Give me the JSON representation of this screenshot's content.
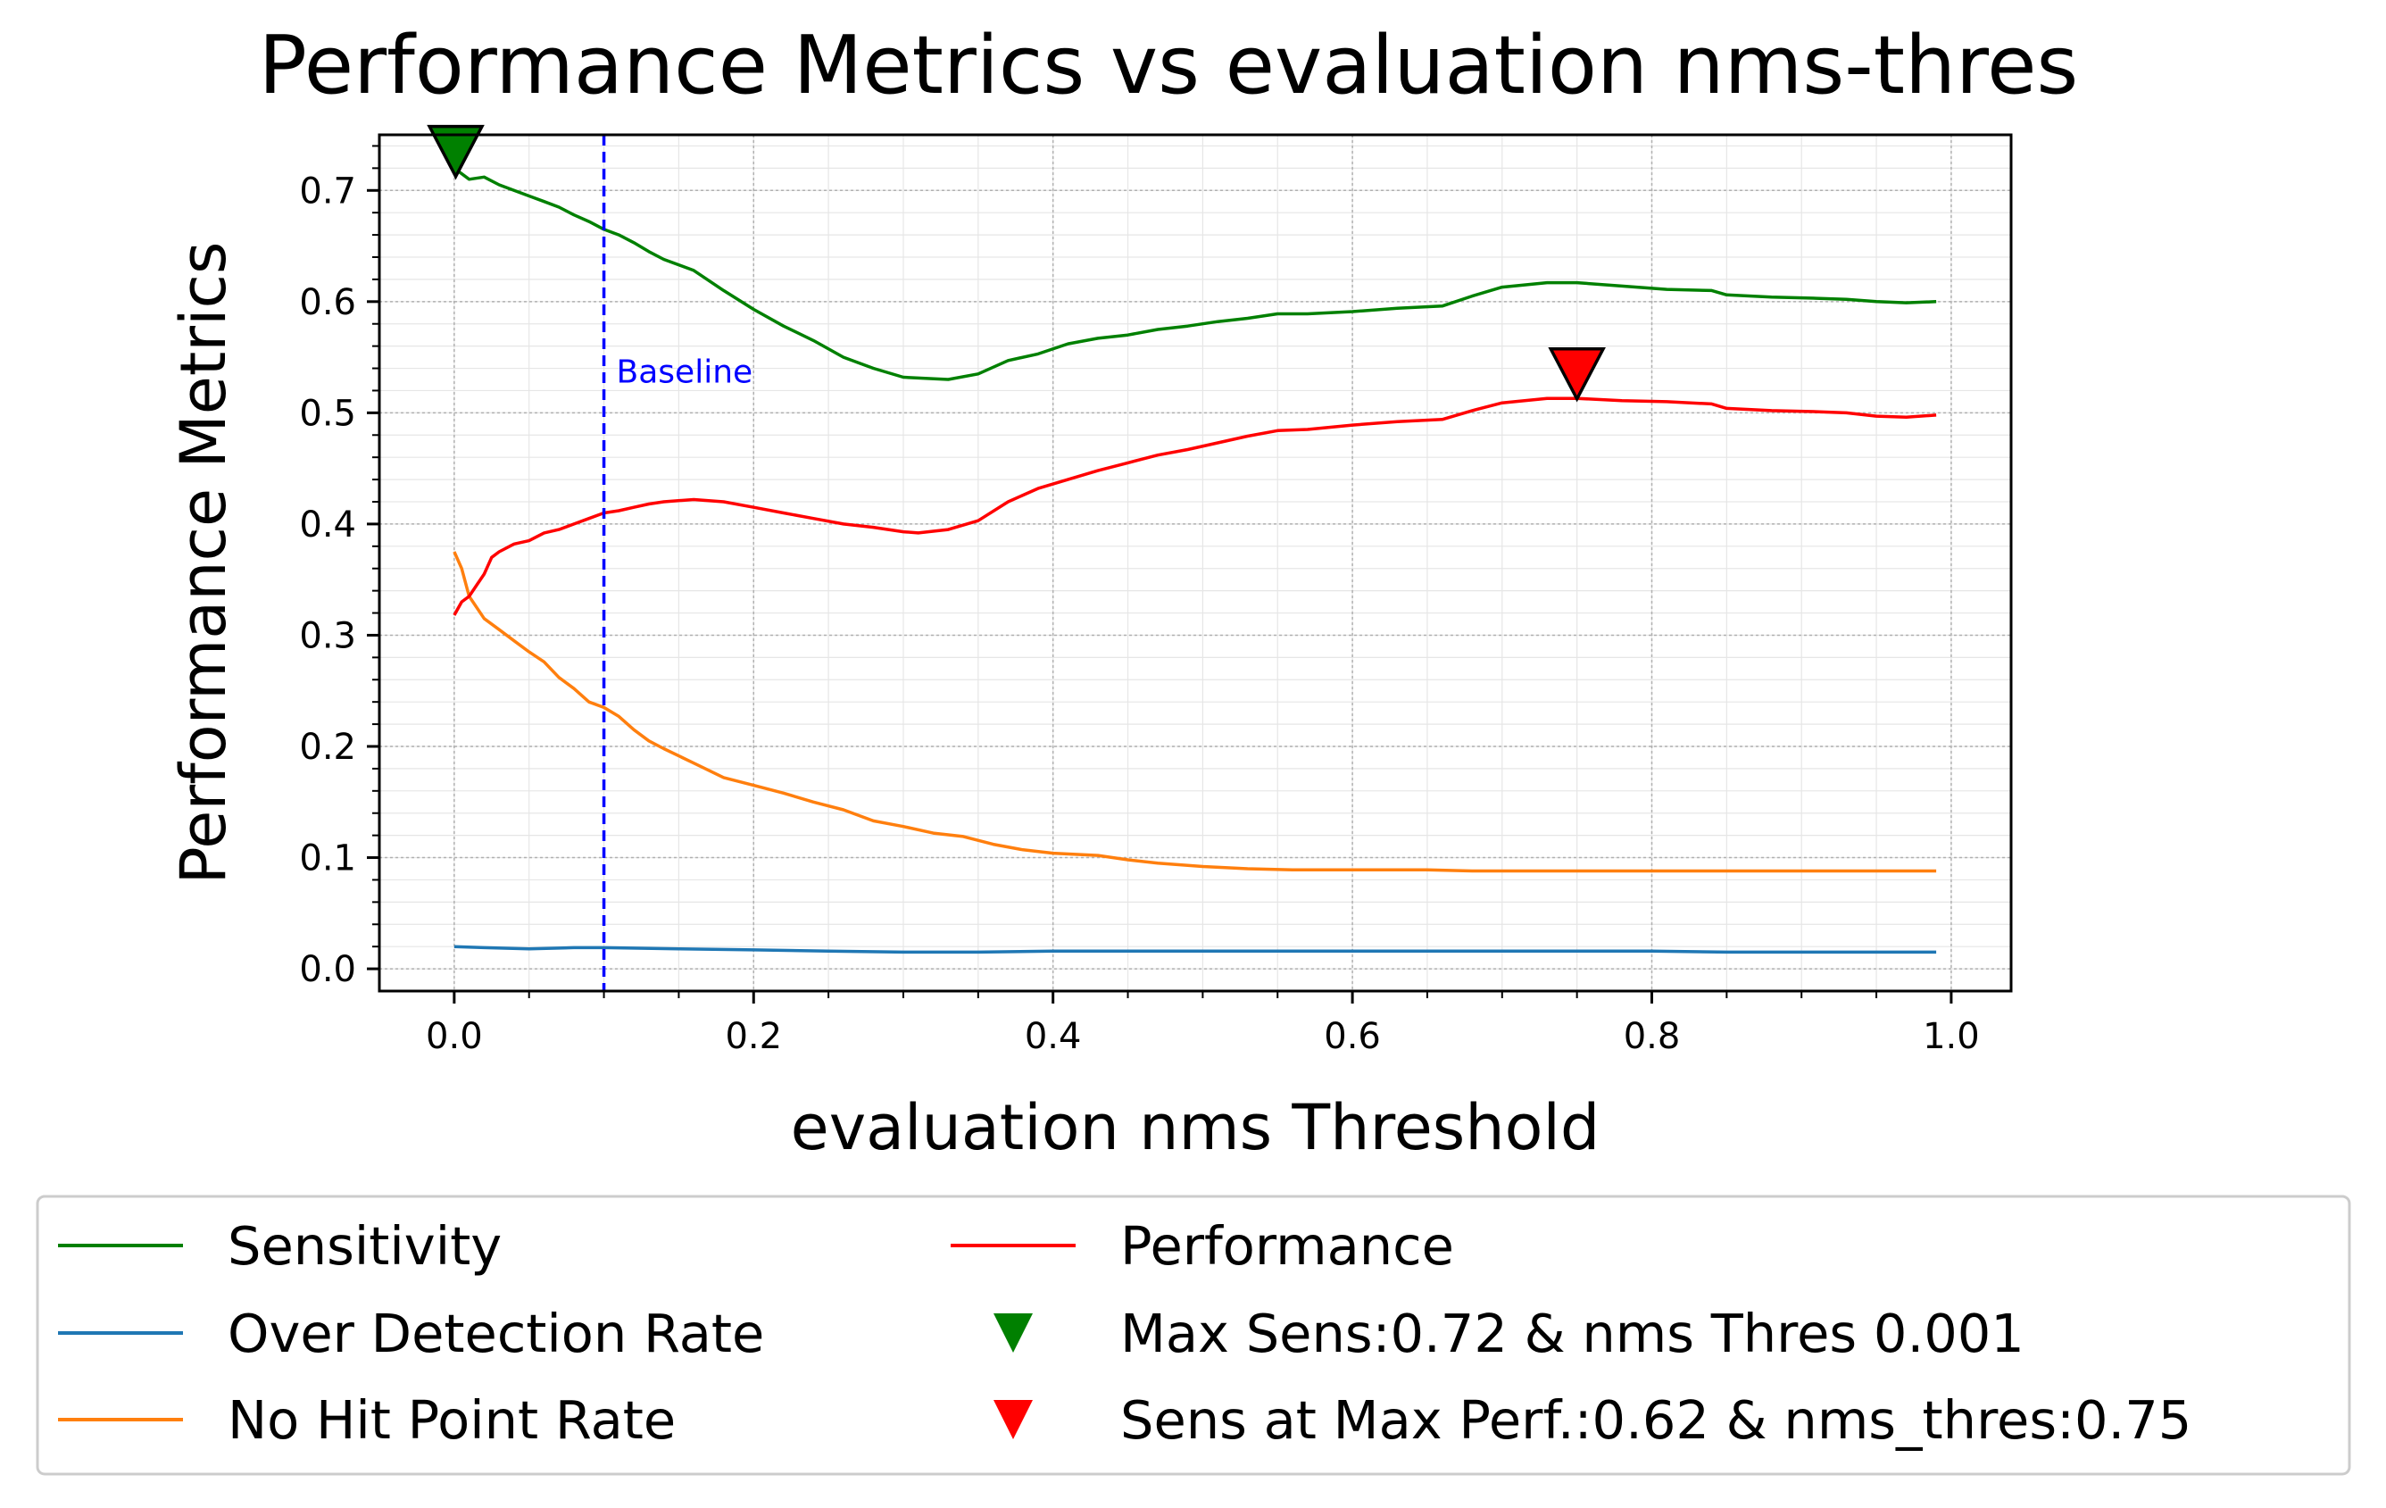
{
  "chart_data": {
    "type": "line",
    "title": "Performance Metrics vs evaluation nms-thres",
    "xlabel": "evaluation nms Threshold",
    "ylabel": "Performance Metrics",
    "xlim": [
      -0.05,
      1.04
    ],
    "ylim": [
      -0.02,
      0.75
    ],
    "xticks": [
      "0.0",
      "0.2",
      "0.4",
      "0.6",
      "0.8",
      "1.0"
    ],
    "yticks": [
      "0.0",
      "0.1",
      "0.2",
      "0.3",
      "0.4",
      "0.5",
      "0.6",
      "0.7"
    ],
    "grid": true,
    "legend_position": "below",
    "series": [
      {
        "name": "Sensitivity",
        "color": "#008000",
        "points": [
          [
            0.0,
            0.72
          ],
          [
            0.01,
            0.71
          ],
          [
            0.02,
            0.712
          ],
          [
            0.03,
            0.705
          ],
          [
            0.04,
            0.7
          ],
          [
            0.05,
            0.695
          ],
          [
            0.06,
            0.69
          ],
          [
            0.07,
            0.685
          ],
          [
            0.08,
            0.678
          ],
          [
            0.09,
            0.672
          ],
          [
            0.1,
            0.665
          ],
          [
            0.11,
            0.66
          ],
          [
            0.12,
            0.653
          ],
          [
            0.13,
            0.645
          ],
          [
            0.14,
            0.638
          ],
          [
            0.16,
            0.628
          ],
          [
            0.18,
            0.61
          ],
          [
            0.2,
            0.593
          ],
          [
            0.22,
            0.578
          ],
          [
            0.24,
            0.565
          ],
          [
            0.26,
            0.55
          ],
          [
            0.28,
            0.54
          ],
          [
            0.3,
            0.532
          ],
          [
            0.33,
            0.53
          ],
          [
            0.35,
            0.535
          ],
          [
            0.37,
            0.547
          ],
          [
            0.39,
            0.553
          ],
          [
            0.41,
            0.562
          ],
          [
            0.43,
            0.567
          ],
          [
            0.45,
            0.57
          ],
          [
            0.47,
            0.575
          ],
          [
            0.49,
            0.578
          ],
          [
            0.51,
            0.582
          ],
          [
            0.53,
            0.585
          ],
          [
            0.55,
            0.589
          ],
          [
            0.57,
            0.589
          ],
          [
            0.6,
            0.591
          ],
          [
            0.63,
            0.594
          ],
          [
            0.66,
            0.596
          ],
          [
            0.68,
            0.605
          ],
          [
            0.7,
            0.613
          ],
          [
            0.73,
            0.617
          ],
          [
            0.75,
            0.617
          ],
          [
            0.78,
            0.614
          ],
          [
            0.81,
            0.611
          ],
          [
            0.84,
            0.61
          ],
          [
            0.85,
            0.606
          ],
          [
            0.88,
            0.604
          ],
          [
            0.91,
            0.603
          ],
          [
            0.93,
            0.602
          ],
          [
            0.95,
            0.6
          ],
          [
            0.97,
            0.599
          ],
          [
            0.99,
            0.6
          ]
        ]
      },
      {
        "name": "Over Detection Rate",
        "color": "#1f77b4",
        "points": [
          [
            0.0,
            0.02
          ],
          [
            0.02,
            0.019
          ],
          [
            0.05,
            0.018
          ],
          [
            0.08,
            0.019
          ],
          [
            0.1,
            0.019
          ],
          [
            0.15,
            0.018
          ],
          [
            0.2,
            0.017
          ],
          [
            0.25,
            0.016
          ],
          [
            0.3,
            0.015
          ],
          [
            0.35,
            0.015
          ],
          [
            0.4,
            0.016
          ],
          [
            0.45,
            0.016
          ],
          [
            0.5,
            0.016
          ],
          [
            0.55,
            0.016
          ],
          [
            0.6,
            0.016
          ],
          [
            0.65,
            0.016
          ],
          [
            0.7,
            0.016
          ],
          [
            0.75,
            0.016
          ],
          [
            0.8,
            0.016
          ],
          [
            0.85,
            0.015
          ],
          [
            0.9,
            0.015
          ],
          [
            0.95,
            0.015
          ],
          [
            0.99,
            0.015
          ]
        ]
      },
      {
        "name": "No Hit Point Rate",
        "color": "#ff7f0e",
        "points": [
          [
            0.0,
            0.375
          ],
          [
            0.005,
            0.36
          ],
          [
            0.01,
            0.335
          ],
          [
            0.02,
            0.315
          ],
          [
            0.03,
            0.305
          ],
          [
            0.04,
            0.295
          ],
          [
            0.05,
            0.285
          ],
          [
            0.06,
            0.276
          ],
          [
            0.07,
            0.262
          ],
          [
            0.08,
            0.252
          ],
          [
            0.09,
            0.24
          ],
          [
            0.1,
            0.235
          ],
          [
            0.11,
            0.227
          ],
          [
            0.12,
            0.215
          ],
          [
            0.13,
            0.205
          ],
          [
            0.14,
            0.198
          ],
          [
            0.16,
            0.185
          ],
          [
            0.18,
            0.172
          ],
          [
            0.2,
            0.165
          ],
          [
            0.22,
            0.158
          ],
          [
            0.24,
            0.15
          ],
          [
            0.26,
            0.143
          ],
          [
            0.28,
            0.133
          ],
          [
            0.3,
            0.128
          ],
          [
            0.32,
            0.122
          ],
          [
            0.34,
            0.119
          ],
          [
            0.36,
            0.112
          ],
          [
            0.38,
            0.107
          ],
          [
            0.4,
            0.104
          ],
          [
            0.43,
            0.102
          ],
          [
            0.45,
            0.098
          ],
          [
            0.47,
            0.095
          ],
          [
            0.5,
            0.092
          ],
          [
            0.53,
            0.09
          ],
          [
            0.56,
            0.089
          ],
          [
            0.6,
            0.089
          ],
          [
            0.65,
            0.089
          ],
          [
            0.68,
            0.088
          ],
          [
            0.72,
            0.088
          ],
          [
            0.8,
            0.088
          ],
          [
            0.9,
            0.088
          ],
          [
            0.99,
            0.088
          ]
        ]
      },
      {
        "name": "Performance",
        "color": "#ff0000",
        "points": [
          [
            0.0,
            0.318
          ],
          [
            0.005,
            0.33
          ],
          [
            0.01,
            0.335
          ],
          [
            0.015,
            0.345
          ],
          [
            0.02,
            0.355
          ],
          [
            0.025,
            0.37
          ],
          [
            0.03,
            0.375
          ],
          [
            0.04,
            0.382
          ],
          [
            0.05,
            0.385
          ],
          [
            0.06,
            0.392
          ],
          [
            0.07,
            0.395
          ],
          [
            0.08,
            0.4
          ],
          [
            0.09,
            0.405
          ],
          [
            0.1,
            0.41
          ],
          [
            0.11,
            0.412
          ],
          [
            0.12,
            0.415
          ],
          [
            0.13,
            0.418
          ],
          [
            0.14,
            0.42
          ],
          [
            0.16,
            0.422
          ],
          [
            0.18,
            0.42
          ],
          [
            0.2,
            0.415
          ],
          [
            0.22,
            0.41
          ],
          [
            0.24,
            0.405
          ],
          [
            0.26,
            0.4
          ],
          [
            0.28,
            0.397
          ],
          [
            0.3,
            0.393
          ],
          [
            0.31,
            0.392
          ],
          [
            0.33,
            0.395
          ],
          [
            0.35,
            0.403
          ],
          [
            0.37,
            0.42
          ],
          [
            0.39,
            0.432
          ],
          [
            0.41,
            0.44
          ],
          [
            0.43,
            0.448
          ],
          [
            0.45,
            0.455
          ],
          [
            0.47,
            0.462
          ],
          [
            0.49,
            0.467
          ],
          [
            0.51,
            0.473
          ],
          [
            0.53,
            0.479
          ],
          [
            0.55,
            0.484
          ],
          [
            0.57,
            0.485
          ],
          [
            0.6,
            0.489
          ],
          [
            0.63,
            0.492
          ],
          [
            0.66,
            0.494
          ],
          [
            0.68,
            0.502
          ],
          [
            0.7,
            0.509
          ],
          [
            0.73,
            0.513
          ],
          [
            0.75,
            0.513
          ],
          [
            0.78,
            0.511
          ],
          [
            0.81,
            0.51
          ],
          [
            0.84,
            0.508
          ],
          [
            0.85,
            0.504
          ],
          [
            0.88,
            0.502
          ],
          [
            0.91,
            0.501
          ],
          [
            0.93,
            0.5
          ],
          [
            0.95,
            0.497
          ],
          [
            0.97,
            0.496
          ],
          [
            0.99,
            0.498
          ]
        ]
      }
    ],
    "markers": [
      {
        "name": "Max Sens:0.72 & nms Thres 0.001",
        "x": 0.001,
        "y": 0.735,
        "color": "#008000"
      },
      {
        "name": "Sens at Max Perf.:0.62 & nms_thres:0.75",
        "x": 0.75,
        "y": 0.535,
        "color": "#ff0000"
      }
    ],
    "baseline": {
      "x": 0.1,
      "label": "Baseline",
      "color": "#0000ff"
    }
  }
}
